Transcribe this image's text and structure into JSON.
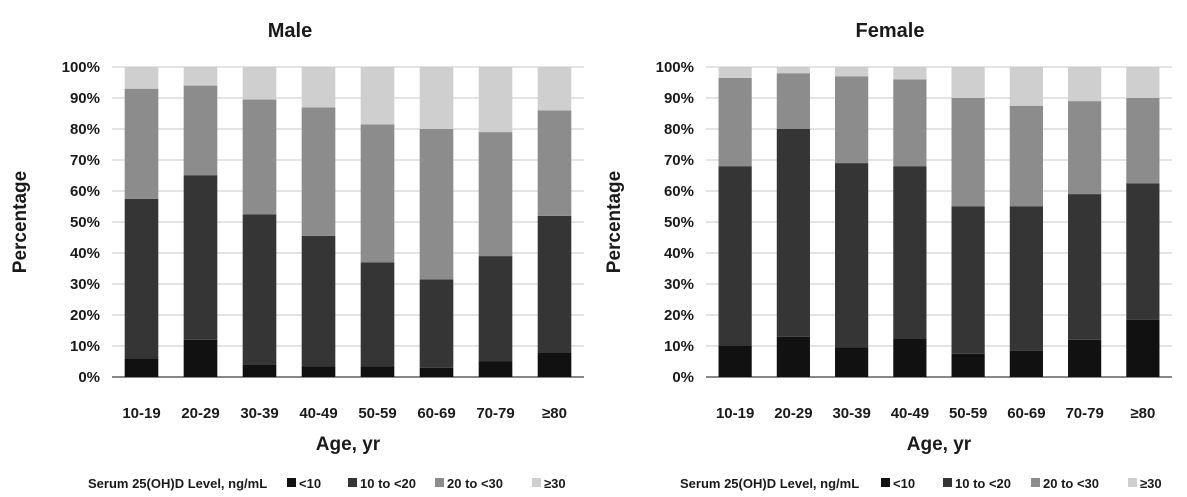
{
  "colors": {
    "lt10": "#111111",
    "10to20": "#353535",
    "20to30": "#8c8c8c",
    "ge30": "#cfcfcf",
    "grid": "#c8c8c8",
    "axis": "#404040"
  },
  "chart_data": [
    {
      "type": "bar",
      "stacked": true,
      "title": "Male",
      "xlabel": "Age, yr",
      "ylabel": "Percentage",
      "ylim": [
        0,
        100
      ],
      "y_ticks": [
        "0%",
        "10%",
        "20%",
        "30%",
        "40%",
        "50%",
        "60%",
        "70%",
        "80%",
        "90%",
        "100%"
      ],
      "categories": [
        "10-19",
        "20-29",
        "30-39",
        "40-49",
        "50-59",
        "60-69",
        "70-79",
        "≥80"
      ],
      "grid": true,
      "legend_placement": "bottom",
      "legend_title": "Serum 25(OH)D Level, ng/mL",
      "series": [
        {
          "name": "<10",
          "color_key": "lt10",
          "values": [
            6,
            12,
            4,
            3.5,
            3.5,
            3,
            5,
            8
          ]
        },
        {
          "name": "10 to <20",
          "color_key": "10to20",
          "values": [
            51.5,
            53,
            48.5,
            42,
            33.5,
            28.5,
            34,
            44
          ]
        },
        {
          "name": "20 to <30",
          "color_key": "20to30",
          "values": [
            35.5,
            29,
            37,
            41.5,
            44.5,
            48.5,
            40,
            34
          ]
        },
        {
          "name": "≥30",
          "color_key": "ge30",
          "values": [
            7,
            6,
            10.5,
            13,
            18.5,
            20,
            21,
            14
          ]
        }
      ]
    },
    {
      "type": "bar",
      "stacked": true,
      "title": "Female",
      "xlabel": "Age, yr",
      "ylabel": "Percentage",
      "ylim": [
        0,
        100
      ],
      "y_ticks": [
        "0%",
        "10%",
        "20%",
        "30%",
        "40%",
        "50%",
        "60%",
        "70%",
        "80%",
        "90%",
        "100%"
      ],
      "categories": [
        "10-19",
        "20-29",
        "30-39",
        "40-49",
        "50-59",
        "60-69",
        "70-79",
        "≥80"
      ],
      "grid": true,
      "legend_placement": "bottom",
      "legend_title": "Serum 25(OH)D Level, ng/mL",
      "series": [
        {
          "name": "<10",
          "color_key": "lt10",
          "values": [
            10,
            13,
            9.5,
            12.5,
            7.5,
            8.5,
            12,
            18.5
          ]
        },
        {
          "name": "10 to <20",
          "color_key": "10to20",
          "values": [
            58,
            67,
            59.5,
            55.5,
            47.5,
            46.5,
            47,
            44
          ]
        },
        {
          "name": "20 to <30",
          "color_key": "20to30",
          "values": [
            28.5,
            18,
            28,
            28,
            35,
            32.5,
            30,
            27.5
          ]
        },
        {
          "name": "≥30",
          "color_key": "ge30",
          "values": [
            3.5,
            2,
            3,
            4,
            10,
            12.5,
            11,
            10
          ]
        }
      ]
    }
  ]
}
